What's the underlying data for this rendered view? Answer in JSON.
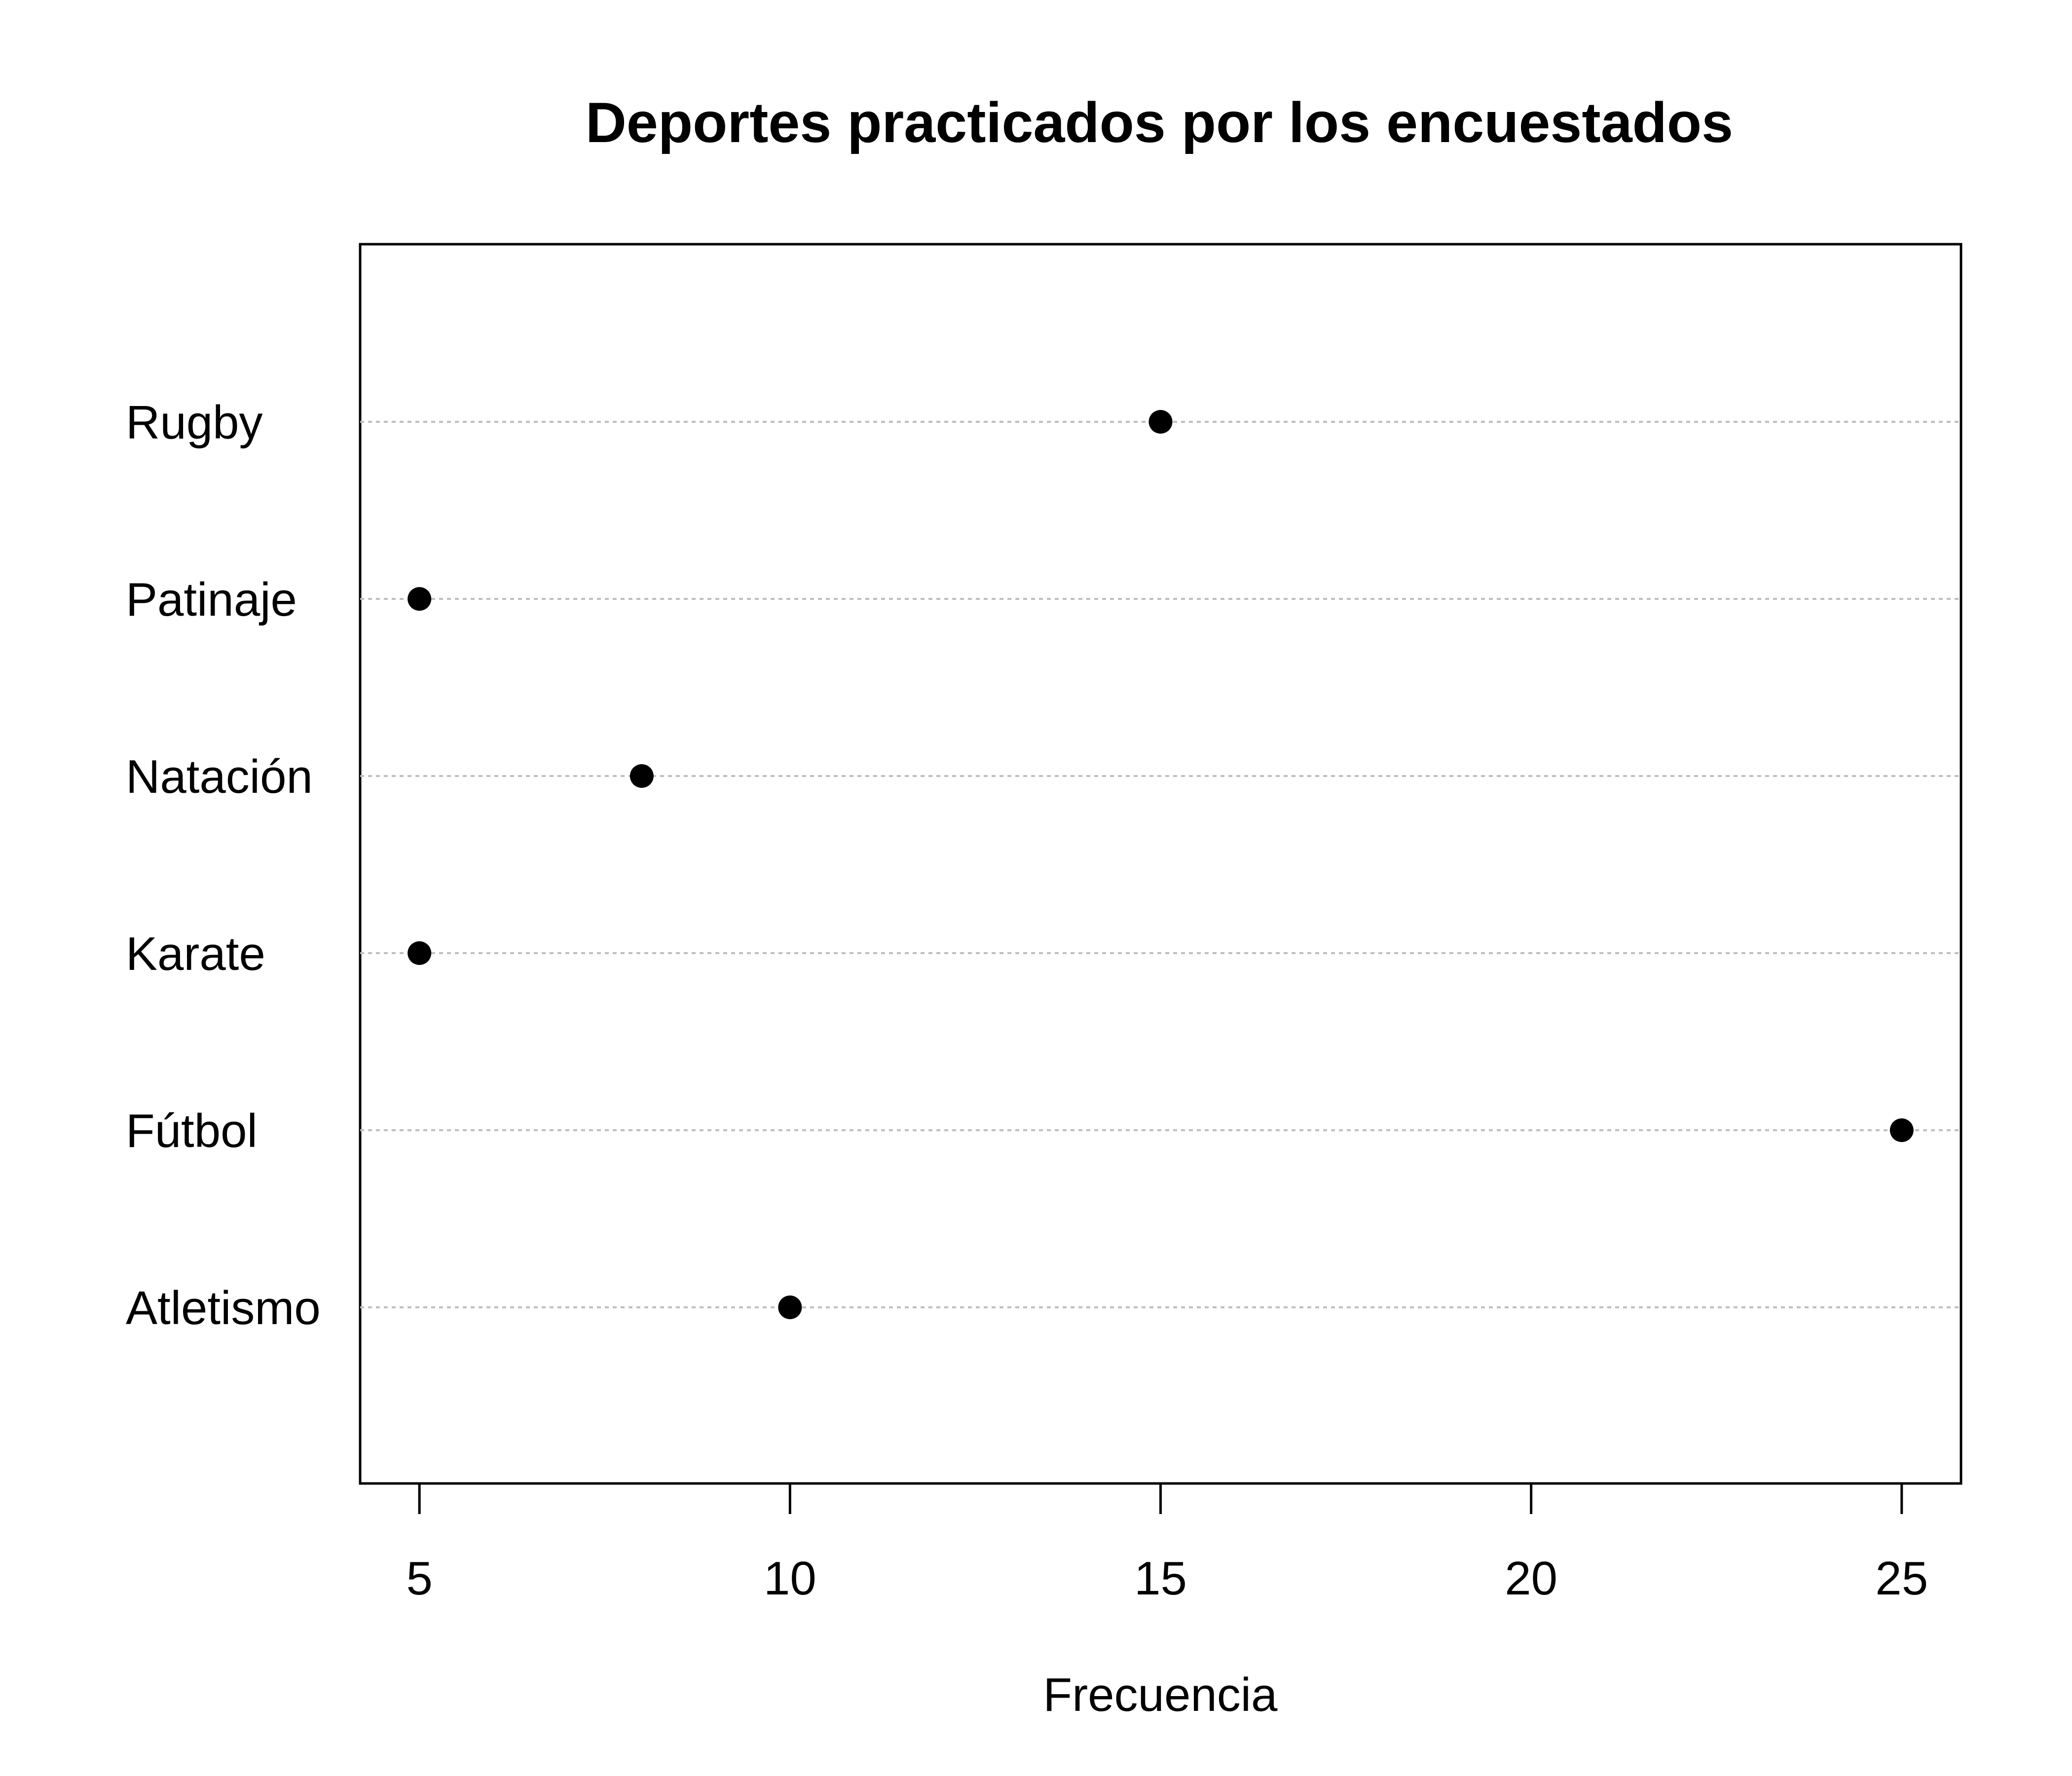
{
  "chart_data": {
    "type": "scatter",
    "subtype": "dotchart",
    "title": "Deportes practicados por los encuestados",
    "xlabel": "Frecuencia",
    "ylabel": "",
    "categories": [
      "Atletismo",
      "Fútbol",
      "Karate",
      "Natación",
      "Patinaje",
      "Rugby"
    ],
    "values": [
      10,
      25,
      5,
      8,
      5,
      15
    ],
    "xticks": [
      5,
      10,
      15,
      20,
      25
    ],
    "xlim": [
      4.2,
      25.8
    ],
    "grid": "dotted horizontal lines per category",
    "legend": "none",
    "point_color": "#000000",
    "grid_color": "#bebebe"
  }
}
